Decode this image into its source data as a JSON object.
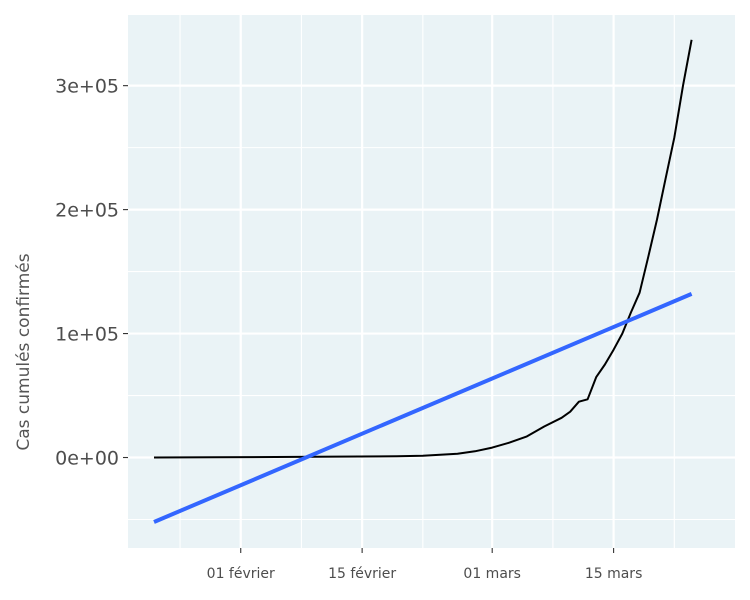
{
  "chart_data": {
    "type": "line",
    "title": "",
    "xlabel": "",
    "ylabel": "Cas cumulés confirmés",
    "x_type": "date",
    "x_ticks": [
      {
        "date": "2020-02-01",
        "label": "01 février"
      },
      {
        "date": "2020-02-15",
        "label": "15 février"
      },
      {
        "date": "2020-03-01",
        "label": "01 mars"
      },
      {
        "date": "2020-03-15",
        "label": "15 mars"
      }
    ],
    "x_minor_ticks": [
      "2020-01-25",
      "2020-02-08",
      "2020-02-22",
      "2020-03-08",
      "2020-03-22"
    ],
    "xlim": [
      "2020-01-19",
      "2020-03-29"
    ],
    "y_ticks": [
      {
        "value": 0,
        "label": "0e+00"
      },
      {
        "value": 100000,
        "label": "1e+05"
      },
      {
        "value": 200000,
        "label": "2e+05"
      },
      {
        "value": 300000,
        "label": "3e+05"
      }
    ],
    "y_minor_ticks": [
      -50000,
      50000,
      150000,
      250000
    ],
    "ylim": [
      -73000,
      357000
    ],
    "grid": true,
    "background": "#eaf3f6",
    "series": [
      {
        "color": "#000000",
        "points": [
          {
            "x": "2020-01-22",
            "y": 0
          },
          {
            "x": "2020-01-29",
            "y": 200
          },
          {
            "x": "2020-02-05",
            "y": 400
          },
          {
            "x": "2020-02-12",
            "y": 700
          },
          {
            "x": "2020-02-19",
            "y": 1000
          },
          {
            "x": "2020-02-22",
            "y": 1500
          },
          {
            "x": "2020-02-26",
            "y": 3000
          },
          {
            "x": "2020-02-28",
            "y": 5000
          },
          {
            "x": "2020-03-01",
            "y": 8000
          },
          {
            "x": "2020-03-03",
            "y": 12000
          },
          {
            "x": "2020-03-05",
            "y": 17000
          },
          {
            "x": "2020-03-07",
            "y": 25000
          },
          {
            "x": "2020-03-09",
            "y": 32000
          },
          {
            "x": "2020-03-10",
            "y": 37000
          },
          {
            "x": "2020-03-11",
            "y": 45000
          },
          {
            "x": "2020-03-12",
            "y": 47000
          },
          {
            "x": "2020-03-13",
            "y": 65000
          },
          {
            "x": "2020-03-14",
            "y": 75000
          },
          {
            "x": "2020-03-15",
            "y": 87000
          },
          {
            "x": "2020-03-16",
            "y": 100000
          },
          {
            "x": "2020-03-17",
            "y": 117000
          },
          {
            "x": "2020-03-18",
            "y": 133000
          },
          {
            "x": "2020-03-19",
            "y": 162000
          },
          {
            "x": "2020-03-20",
            "y": 192000
          },
          {
            "x": "2020-03-21",
            "y": 225000
          },
          {
            "x": "2020-03-22",
            "y": 258000
          },
          {
            "x": "2020-03-23",
            "y": 300000
          },
          {
            "x": "2020-03-24",
            "y": 337000
          }
        ]
      },
      {
        "color": "#3366ff",
        "fit": "linear",
        "points": [
          {
            "x": "2020-01-22",
            "y": -52000
          },
          {
            "x": "2020-03-24",
            "y": 132000
          }
        ]
      }
    ]
  }
}
